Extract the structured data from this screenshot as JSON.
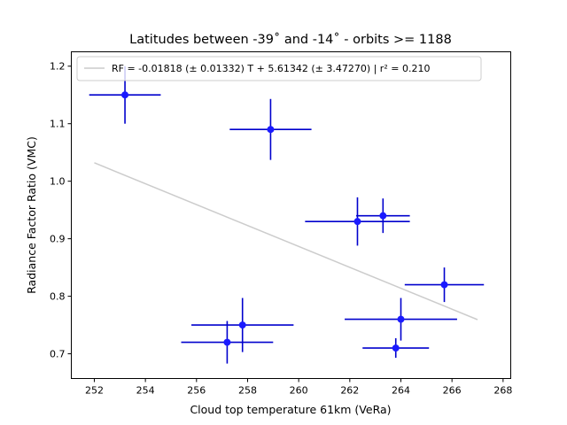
{
  "chart_data": {
    "type": "scatter",
    "title": "Latitudes between -39˚ and -14˚ - orbits >= 1188",
    "xlabel": "Cloud top temperature 61km (VeRa)",
    "ylabel": "Radiance Factor Ratio (VMC)",
    "xlim": [
      251.1,
      268.3
    ],
    "ylim": [
      0.657,
      1.225
    ],
    "xticks": [
      252,
      254,
      256,
      258,
      260,
      262,
      264,
      266,
      268
    ],
    "yticks": [
      0.7,
      0.8,
      0.9,
      1.0,
      1.1,
      1.2
    ],
    "xtick_labels": [
      "252",
      "254",
      "256",
      "258",
      "260",
      "262",
      "264",
      "266",
      "268"
    ],
    "ytick_labels": [
      "0.7",
      "0.8",
      "0.9",
      "1.0",
      "1.1",
      "1.2"
    ],
    "grid": false,
    "legend_position": "top-left",
    "legend_entry": "RF = -0.01818 (± 0.01332) T + 5.61342 (± 3.47270) | r² = 0.210",
    "fit": {
      "slope": -0.01818,
      "intercept": 5.61342,
      "x": [
        252.0,
        267.0
      ]
    },
    "points": [
      {
        "x": 253.2,
        "y": 1.15,
        "xerr": 1.4,
        "yerr": 0.05
      },
      {
        "x": 258.9,
        "y": 1.09,
        "xerr": 1.6,
        "yerr": 0.053
      },
      {
        "x": 262.3,
        "y": 0.93,
        "xerr": 2.05,
        "yerr": 0.042
      },
      {
        "x": 263.3,
        "y": 0.94,
        "xerr": 1.05,
        "yerr": 0.03
      },
      {
        "x": 265.7,
        "y": 0.82,
        "xerr": 1.55,
        "yerr": 0.03
      },
      {
        "x": 264.0,
        "y": 0.76,
        "xerr": 2.2,
        "yerr": 0.037
      },
      {
        "x": 263.8,
        "y": 0.71,
        "xerr": 1.3,
        "yerr": 0.017
      },
      {
        "x": 257.8,
        "y": 0.75,
        "xerr": 2.0,
        "yerr": 0.047
      },
      {
        "x": 257.2,
        "y": 0.72,
        "xerr": 1.8,
        "yerr": 0.037
      }
    ],
    "colors": {
      "points": "#1a1aff",
      "errorbars": "#0000cd",
      "fit": "#cccccc",
      "axis": "#000000",
      "legend_border": "#cccccc"
    }
  }
}
